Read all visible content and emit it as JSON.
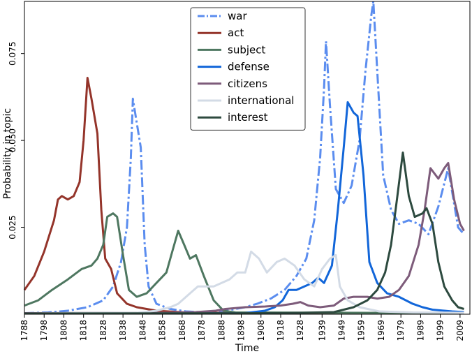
{
  "chart_data": {
    "type": "line",
    "xlabel": "Time",
    "ylabel": "Probability in topic",
    "xlim": [
      1788,
      2014
    ],
    "ylim": [
      0,
      0.09
    ],
    "x_ticks": [
      "1788",
      "1798",
      "1808",
      "1818",
      "1828",
      "1838",
      "1848",
      "1858",
      "1868",
      "1878",
      "1888",
      "1898",
      "1908",
      "1918",
      "1928",
      "1939",
      "1949",
      "1959",
      "1969",
      "1979",
      "1989",
      "1999",
      "2009"
    ],
    "x_tick_values": [
      1788,
      1798,
      1808,
      1818,
      1828,
      1838,
      1848,
      1858,
      1868,
      1878,
      1888,
      1898,
      1908,
      1918,
      1928,
      1939,
      1949,
      1959,
      1969,
      1979,
      1989,
      1999,
      2009
    ],
    "y_ticks": [
      "0.025",
      "0.050",
      "0.075"
    ],
    "y_tick_values": [
      0.025,
      0.05,
      0.075
    ],
    "legend_position": "top-center",
    "series": [
      {
        "name": "war",
        "color": "#5b8def",
        "style": "dashdot",
        "width": 3,
        "points": [
          [
            1788,
            0.0003
          ],
          [
            1800,
            0.0005
          ],
          [
            1810,
            0.001
          ],
          [
            1820,
            0.002
          ],
          [
            1828,
            0.004
          ],
          [
            1833,
            0.008
          ],
          [
            1837,
            0.015
          ],
          [
            1840,
            0.025
          ],
          [
            1842,
            0.045
          ],
          [
            1843,
            0.062
          ],
          [
            1845,
            0.055
          ],
          [
            1847,
            0.048
          ],
          [
            1849,
            0.02
          ],
          [
            1851,
            0.008
          ],
          [
            1855,
            0.003
          ],
          [
            1862,
            0.0015
          ],
          [
            1870,
            0.0008
          ],
          [
            1880,
            0.0005
          ],
          [
            1890,
            0.001
          ],
          [
            1900,
            0.002
          ],
          [
            1906,
            0.003
          ],
          [
            1913,
            0.0045
          ],
          [
            1920,
            0.007
          ],
          [
            1926,
            0.011
          ],
          [
            1931,
            0.016
          ],
          [
            1935,
            0.027
          ],
          [
            1938,
            0.045
          ],
          [
            1940,
            0.065
          ],
          [
            1941,
            0.0785
          ],
          [
            1943,
            0.06
          ],
          [
            1946,
            0.036
          ],
          [
            1950,
            0.032
          ],
          [
            1954,
            0.037
          ],
          [
            1958,
            0.05
          ],
          [
            1961,
            0.07
          ],
          [
            1964,
            0.086
          ],
          [
            1965,
            0.09
          ],
          [
            1967,
            0.07
          ],
          [
            1970,
            0.04
          ],
          [
            1974,
            0.03
          ],
          [
            1978,
            0.026
          ],
          [
            1983,
            0.027
          ],
          [
            1988,
            0.026
          ],
          [
            1993,
            0.023
          ],
          [
            1998,
            0.031
          ],
          [
            2003,
            0.042
          ],
          [
            2008,
            0.025
          ],
          [
            2011,
            0.023
          ]
        ]
      },
      {
        "name": "act",
        "color": "#94342a",
        "style": "solid",
        "width": 3,
        "points": [
          [
            1788,
            0.007
          ],
          [
            1793,
            0.011
          ],
          [
            1798,
            0.018
          ],
          [
            1803,
            0.027
          ],
          [
            1805,
            0.033
          ],
          [
            1807,
            0.034
          ],
          [
            1810,
            0.033
          ],
          [
            1813,
            0.034
          ],
          [
            1816,
            0.038
          ],
          [
            1818,
            0.05
          ],
          [
            1820,
            0.068
          ],
          [
            1822,
            0.062
          ],
          [
            1825,
            0.052
          ],
          [
            1827,
            0.03
          ],
          [
            1829,
            0.016
          ],
          [
            1832,
            0.013
          ],
          [
            1835,
            0.006
          ],
          [
            1840,
            0.003
          ],
          [
            1845,
            0.002
          ],
          [
            1855,
            0.001
          ],
          [
            1870,
            0.0005
          ],
          [
            1900,
            0.0003
          ],
          [
            2011,
            0.0003
          ]
        ]
      },
      {
        "name": "subject",
        "color": "#4e7760",
        "style": "solid",
        "width": 3,
        "points": [
          [
            1788,
            0.0025
          ],
          [
            1795,
            0.004
          ],
          [
            1802,
            0.007
          ],
          [
            1810,
            0.01
          ],
          [
            1817,
            0.013
          ],
          [
            1822,
            0.014
          ],
          [
            1825,
            0.016
          ],
          [
            1828,
            0.02
          ],
          [
            1830,
            0.028
          ],
          [
            1833,
            0.029
          ],
          [
            1835,
            0.028
          ],
          [
            1838,
            0.017
          ],
          [
            1841,
            0.007
          ],
          [
            1845,
            0.005
          ],
          [
            1850,
            0.006
          ],
          [
            1855,
            0.009
          ],
          [
            1860,
            0.012
          ],
          [
            1863,
            0.018
          ],
          [
            1866,
            0.024
          ],
          [
            1869,
            0.02
          ],
          [
            1872,
            0.016
          ],
          [
            1875,
            0.017
          ],
          [
            1879,
            0.011
          ],
          [
            1884,
            0.004
          ],
          [
            1889,
            0.001
          ],
          [
            1895,
            0.0005
          ],
          [
            2011,
            0.0003
          ]
        ]
      },
      {
        "name": "defense",
        "color": "#1266d9",
        "style": "solid",
        "width": 3,
        "points": [
          [
            1788,
            0.0002
          ],
          [
            1900,
            0.0003
          ],
          [
            1910,
            0.001
          ],
          [
            1915,
            0.002
          ],
          [
            1919,
            0.004
          ],
          [
            1922,
            0.007
          ],
          [
            1926,
            0.007
          ],
          [
            1930,
            0.008
          ],
          [
            1934,
            0.009
          ],
          [
            1937,
            0.0105
          ],
          [
            1940,
            0.009
          ],
          [
            1944,
            0.014
          ],
          [
            1947,
            0.03
          ],
          [
            1950,
            0.048
          ],
          [
            1952,
            0.061
          ],
          [
            1955,
            0.058
          ],
          [
            1957,
            0.057
          ],
          [
            1960,
            0.04
          ],
          [
            1963,
            0.015
          ],
          [
            1967,
            0.009
          ],
          [
            1972,
            0.006
          ],
          [
            1978,
            0.005
          ],
          [
            1985,
            0.003
          ],
          [
            1990,
            0.002
          ],
          [
            1995,
            0.0013
          ],
          [
            2005,
            0.0008
          ],
          [
            2011,
            0.0006
          ]
        ]
      },
      {
        "name": "citizens",
        "color": "#7d5b7a",
        "style": "solid",
        "width": 3,
        "points": [
          [
            1788,
            0.0003
          ],
          [
            1860,
            0.0004
          ],
          [
            1875,
            0.0006
          ],
          [
            1885,
            0.001
          ],
          [
            1890,
            0.0015
          ],
          [
            1900,
            0.002
          ],
          [
            1910,
            0.0022
          ],
          [
            1918,
            0.0025
          ],
          [
            1924,
            0.003
          ],
          [
            1928,
            0.0035
          ],
          [
            1932,
            0.0025
          ],
          [
            1938,
            0.002
          ],
          [
            1945,
            0.0025
          ],
          [
            1950,
            0.0045
          ],
          [
            1955,
            0.005
          ],
          [
            1962,
            0.005
          ],
          [
            1967,
            0.0045
          ],
          [
            1973,
            0.005
          ],
          [
            1978,
            0.007
          ],
          [
            1983,
            0.011
          ],
          [
            1988,
            0.02
          ],
          [
            1991,
            0.03
          ],
          [
            1994,
            0.042
          ],
          [
            1998,
            0.039
          ],
          [
            2001,
            0.042
          ],
          [
            2003,
            0.0435
          ],
          [
            2006,
            0.033
          ],
          [
            2009,
            0.026
          ],
          [
            2011,
            0.024
          ]
        ]
      },
      {
        "name": "international",
        "color": "#d3dbe6",
        "style": "solid",
        "width": 3,
        "points": [
          [
            1788,
            0.0002
          ],
          [
            1845,
            0.0004
          ],
          [
            1855,
            0.001
          ],
          [
            1862,
            0.002
          ],
          [
            1866,
            0.003
          ],
          [
            1872,
            0.006
          ],
          [
            1876,
            0.008
          ],
          [
            1884,
            0.008
          ],
          [
            1892,
            0.01
          ],
          [
            1896,
            0.012
          ],
          [
            1900,
            0.012
          ],
          [
            1903,
            0.018
          ],
          [
            1907,
            0.016
          ],
          [
            1911,
            0.012
          ],
          [
            1916,
            0.015
          ],
          [
            1920,
            0.016
          ],
          [
            1925,
            0.014
          ],
          [
            1930,
            0.01
          ],
          [
            1935,
            0.008
          ],
          [
            1939,
            0.013
          ],
          [
            1943,
            0.016
          ],
          [
            1946,
            0.017
          ],
          [
            1948,
            0.008
          ],
          [
            1952,
            0.004
          ],
          [
            1958,
            0.002
          ],
          [
            1968,
            0.0008
          ],
          [
            1985,
            0.0005
          ],
          [
            2011,
            0.0004
          ]
        ]
      },
      {
        "name": "interest",
        "color": "#2d4a3f",
        "style": "solid",
        "width": 3,
        "points": [
          [
            1788,
            0.0002
          ],
          [
            1920,
            0.0003
          ],
          [
            1945,
            0.0006
          ],
          [
            1955,
            0.002
          ],
          [
            1962,
            0.004
          ],
          [
            1967,
            0.007
          ],
          [
            1971,
            0.012
          ],
          [
            1974,
            0.02
          ],
          [
            1977,
            0.033
          ],
          [
            1980,
            0.0465
          ],
          [
            1983,
            0.034
          ],
          [
            1986,
            0.028
          ],
          [
            1990,
            0.029
          ],
          [
            1992,
            0.0305
          ],
          [
            1995,
            0.026
          ],
          [
            1998,
            0.015
          ],
          [
            2001,
            0.008
          ],
          [
            2005,
            0.004
          ],
          [
            2008,
            0.002
          ],
          [
            2011,
            0.0015
          ]
        ]
      }
    ]
  }
}
